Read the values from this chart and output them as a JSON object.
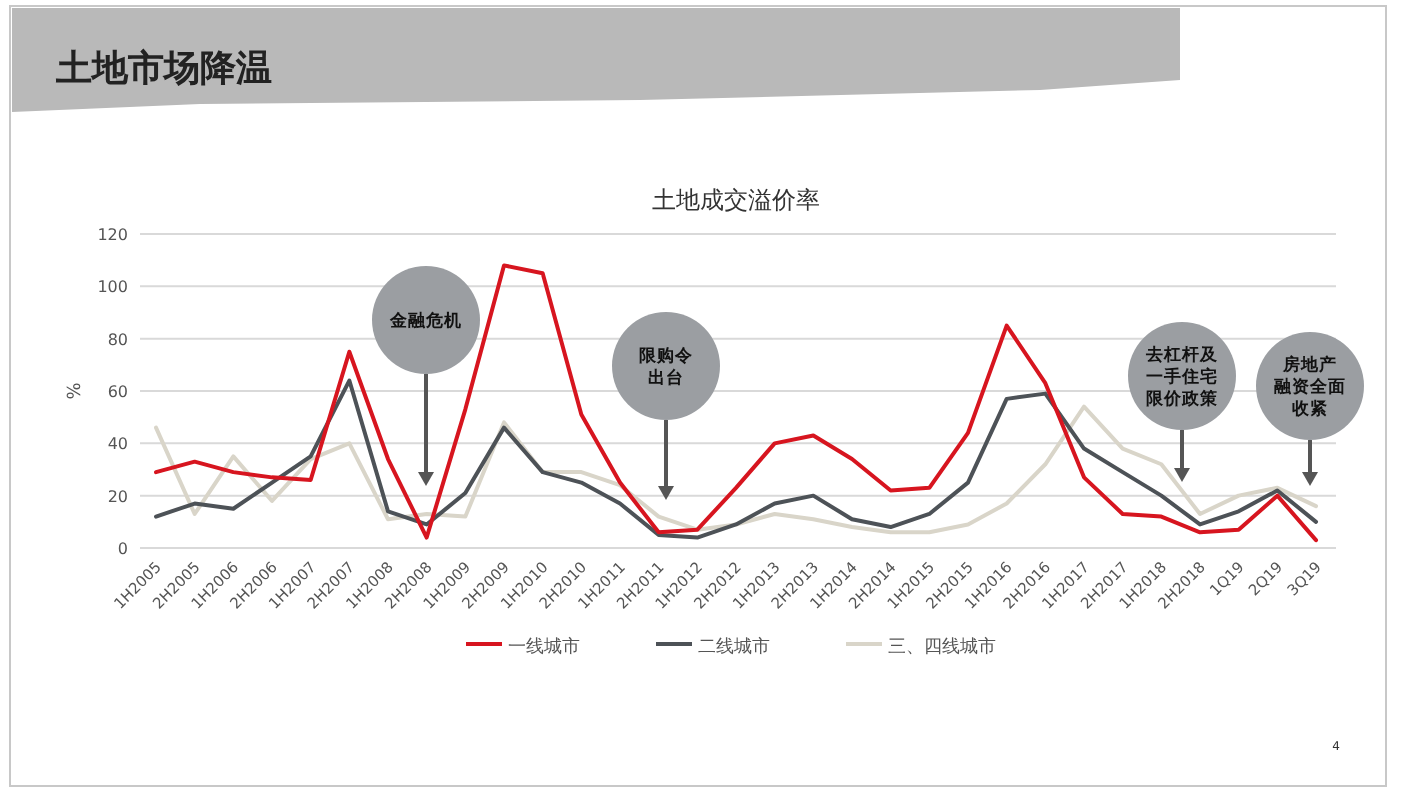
{
  "chart_data": {
    "type": "line",
    "title": "土地市场降温",
    "subtitle": "土地成交溢价率",
    "ylabel": "%",
    "categories": [
      "1H2005",
      "2H2005",
      "1H2006",
      "2H2006",
      "1H2007",
      "2H2007",
      "1H2008",
      "2H2008",
      "1H2009",
      "2H2009",
      "1H2010",
      "2H2010",
      "1H2011",
      "2H2011",
      "1H2012",
      "2H2012",
      "1H2013",
      "2H2013",
      "1H2014",
      "2H2014",
      "1H2015",
      "2H2015",
      "1H2016",
      "2H2016",
      "1H2017",
      "2H2017",
      "1H2018",
      "2H2018",
      "1Q19",
      "2Q19",
      "3Q19"
    ],
    "series": [
      {
        "name": "一线城市",
        "color": "#d7151f",
        "values": [
          29,
          33,
          29,
          27,
          26,
          75,
          34,
          4,
          53,
          108,
          105,
          51,
          25,
          6,
          7,
          23,
          40,
          43,
          34,
          22,
          23,
          44,
          85,
          63,
          27,
          13,
          12,
          6,
          7,
          20,
          3
        ]
      },
      {
        "name": "二线城市",
        "color": "#4d5257",
        "values": [
          12,
          17,
          15,
          25,
          35,
          64,
          14,
          9,
          21,
          46,
          29,
          25,
          17,
          5,
          4,
          9,
          17,
          20,
          11,
          8,
          13,
          25,
          57,
          59,
          38,
          29,
          20,
          9,
          14,
          22,
          10
        ]
      },
      {
        "name": "三、四线城市",
        "color": "#d9d5c9",
        "values": [
          46,
          13,
          35,
          18,
          34,
          40,
          11,
          13,
          12,
          48,
          29,
          29,
          24,
          12,
          7,
          9,
          13,
          11,
          8,
          6,
          6,
          9,
          17,
          32,
          54,
          38,
          32,
          13,
          20,
          23,
          16
        ]
      }
    ],
    "annotations": [
      "金融危机",
      "限购令出台",
      "去杠杆及一手住宅限价政策",
      "房地产融资全面收紧",
      "4"
    ],
    "ylim": [
      0,
      120
    ],
    "yticks": [
      0,
      20,
      40,
      60,
      80,
      100,
      120
    ],
    "grid": "y",
    "legend": "bottom"
  }
}
